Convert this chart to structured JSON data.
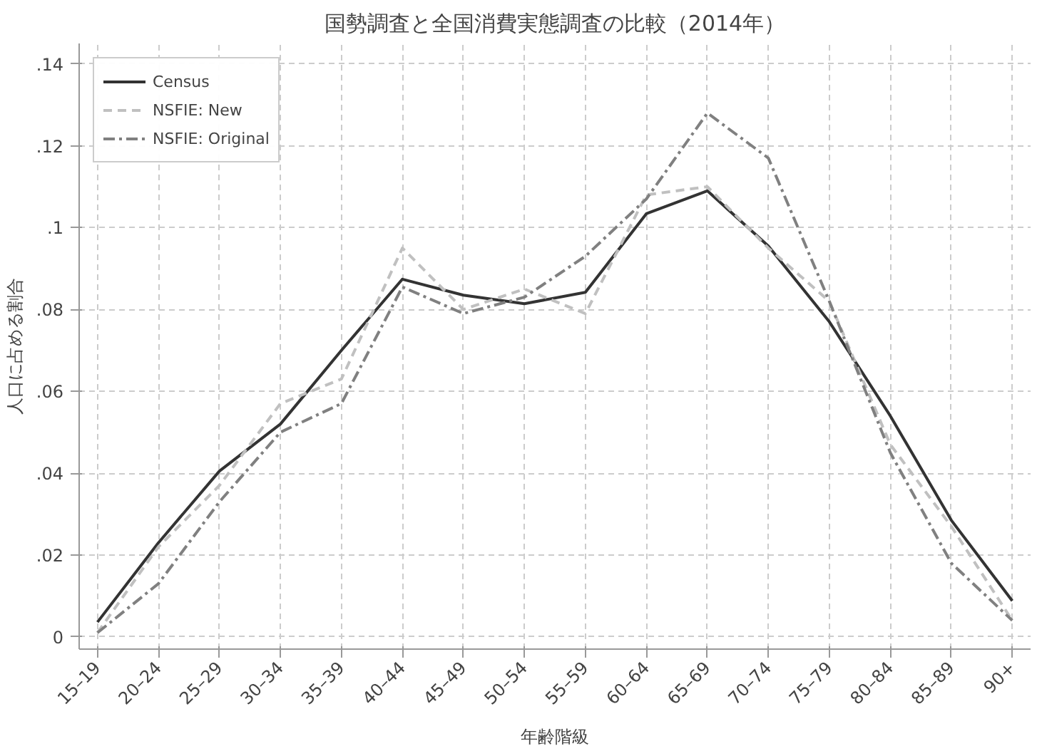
{
  "chart_data": {
    "type": "line",
    "title": "国勢調査と全国消費実態調査の比較（2014年）",
    "xlabel": "年齢階級",
    "ylabel": "人口に占める割合",
    "categories": [
      "15–19",
      "20–24",
      "25–29",
      "30–34",
      "35–39",
      "40–44",
      "45–49",
      "50–54",
      "55–59",
      "60–64",
      "65–69",
      "70–74",
      "75–79",
      "80–84",
      "85–89",
      "90+"
    ],
    "series": [
      {
        "name": "Census",
        "color": "#333333",
        "line_style": "solid",
        "values": [
          0.0036,
          0.023,
          0.0405,
          0.052,
          0.07,
          0.0874,
          0.0835,
          0.0814,
          0.0842,
          0.1034,
          0.109,
          0.0955,
          0.077,
          0.054,
          0.0285,
          0.0088
        ]
      },
      {
        "name": "NSFIE: New",
        "color": "#c0c0c0",
        "line_style": "dashed",
        "values": [
          0.001,
          0.022,
          0.037,
          0.057,
          0.063,
          0.095,
          0.08,
          0.085,
          0.079,
          0.108,
          0.11,
          0.095,
          0.082,
          0.047,
          0.027,
          0.004
        ]
      },
      {
        "name": "NSFIE: Original",
        "color": "#808080",
        "line_style": "dashdot",
        "values": [
          0.001,
          0.013,
          0.033,
          0.05,
          0.057,
          0.0855,
          0.079,
          0.083,
          0.093,
          0.107,
          0.128,
          0.117,
          0.082,
          0.045,
          0.018,
          0.004
        ]
      }
    ],
    "ylim": [
      -0.003,
      0.145
    ],
    "yticks": [
      0,
      {
        "value": 0.02,
        "label": ".02"
      },
      {
        "value": 0.04,
        "label": ".04"
      },
      {
        "value": 0.06,
        "label": ".06"
      },
      {
        "value": 0.08,
        "label": ".08"
      },
      {
        "value": 0.1,
        "label": ".1"
      },
      {
        "value": 0.12,
        "label": ".12"
      },
      {
        "value": 0.14,
        "label": ".14"
      }
    ],
    "grid": true,
    "legend": "top left"
  }
}
